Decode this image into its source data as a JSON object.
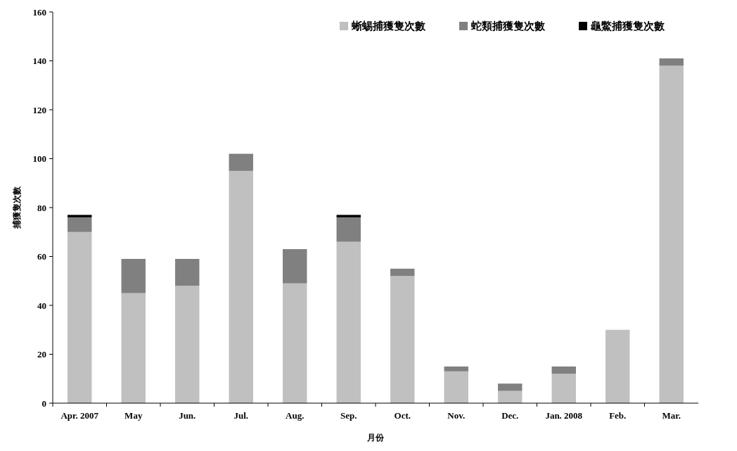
{
  "chart_data": {
    "type": "bar",
    "stacked": true,
    "xlabel": "月份",
    "ylabel": "捕獲隻次數",
    "categories": [
      "Apr. 2007",
      "May",
      "Jun.",
      "Jul.",
      "Aug.",
      "Sep.",
      "Oct.",
      "Nov.",
      "Dec.",
      "Jan. 2008",
      "Feb.",
      "Mar."
    ],
    "series": [
      {
        "name": "蜥蜴捕獲隻次數",
        "color": "#c0c0c0",
        "values": [
          70,
          45,
          48,
          95,
          49,
          66,
          52,
          13,
          5,
          12,
          30,
          138
        ]
      },
      {
        "name": "蛇類捕獲隻次數",
        "color": "#808080",
        "values": [
          6,
          14,
          11,
          7,
          14,
          10,
          3,
          2,
          3,
          3,
          0,
          3
        ]
      },
      {
        "name": "龜鱉捕獲隻次數",
        "color": "#000000",
        "values": [
          1,
          0,
          0,
          0,
          0,
          1,
          0,
          0,
          0,
          0,
          0,
          0
        ]
      }
    ],
    "ylim": [
      0,
      160
    ],
    "yticks": [
      0,
      20,
      40,
      60,
      80,
      100,
      120,
      140,
      160
    ],
    "grid": false,
    "legend": "top right"
  }
}
